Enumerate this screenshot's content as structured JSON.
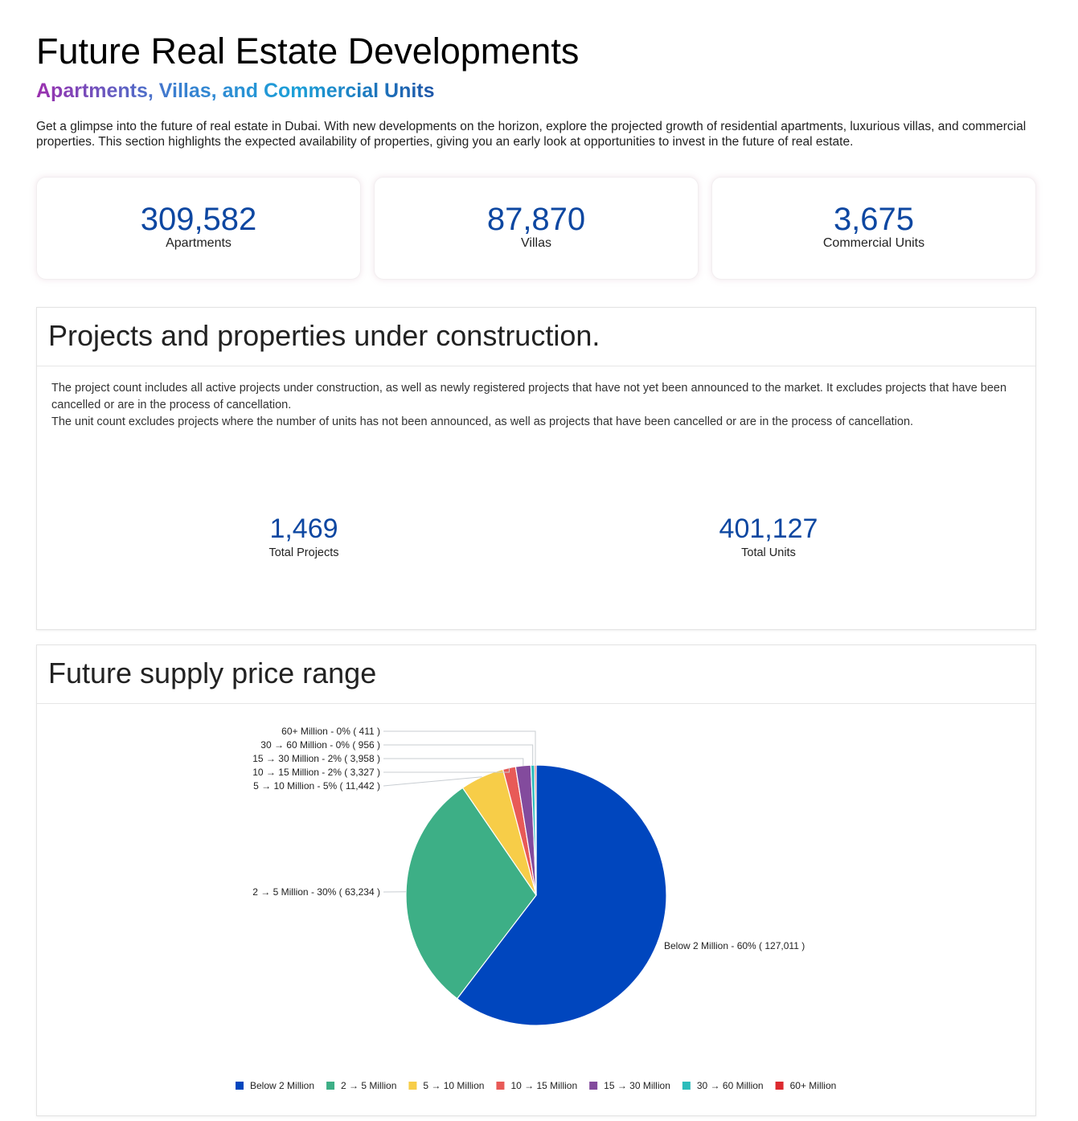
{
  "header": {
    "title": "Future Real Estate Developments",
    "subtitle": "Apartments, Villas, and Commercial Units",
    "intro": "Get a glimpse into the future of real estate in Dubai. With new developments on the horizon, explore the projected growth of residential apartments, luxurious villas, and commercial properties. This section highlights the expected availability of properties, giving you an early look at opportunities to invest in the future of real estate."
  },
  "stats": [
    {
      "value": "309,582",
      "label": "Apartments"
    },
    {
      "value": "87,870",
      "label": "Villas"
    },
    {
      "value": "3,675",
      "label": "Commercial Units"
    }
  ],
  "construction": {
    "title": "Projects and properties under construction.",
    "desc1": "The project count includes all active projects under construction, as well as newly registered projects that have not yet been announced to the market. It excludes projects that have been cancelled or are in the process of cancellation.",
    "desc2": "The unit count excludes projects where the number of units has not been announced, as well as projects that have been cancelled or are in the process of cancellation.",
    "projects": {
      "value": "1,469",
      "label": "Total Projects"
    },
    "units": {
      "value": "401,127",
      "label": "Total Units"
    }
  },
  "supply": {
    "title": "Future supply price range"
  },
  "chart_data": {
    "type": "pie",
    "legend": "bottom",
    "categories": [
      "Below 2 Million",
      "2 → 5 Million",
      "5 → 10 Million",
      "10 → 15 Million",
      "15 → 30 Million",
      "30 → 60 Million",
      "60+ Million"
    ],
    "values": [
      127011,
      63234,
      11442,
      3327,
      3958,
      956,
      411
    ],
    "percent_labels": [
      "60%",
      "30%",
      "5%",
      "2%",
      "2%",
      "0%",
      "0%"
    ],
    "data_labels": [
      "Below 2 Million - 60% ( 127,011 )",
      "2 → 5 Million - 30% ( 63,234 )",
      "5 → 10 Million - 5% ( 11,442 )",
      "10 → 15 Million - 2% ( 3,327 )",
      "15 → 30 Million - 2% ( 3,958 )",
      "30 → 60 Million - 0% ( 956 )",
      "60+ Million - 0% ( 411 )"
    ],
    "colors": [
      "#0046be",
      "#3daf86",
      "#f7cd48",
      "#e85a57",
      "#834b9d",
      "#2cbcbb",
      "#dc2a2f"
    ]
  }
}
